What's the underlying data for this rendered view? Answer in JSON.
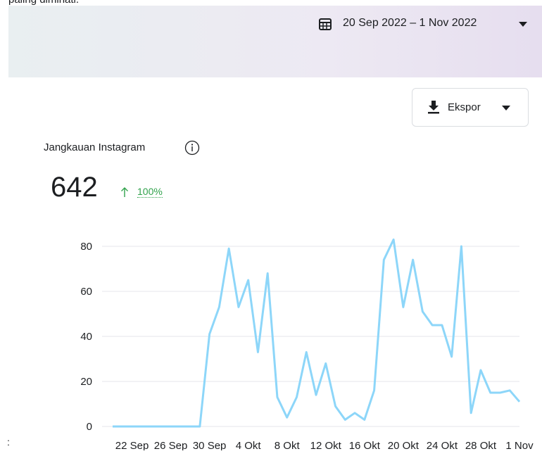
{
  "header": {
    "note": "paling diminati.",
    "date_range": "20 Sep 2022 – 1 Nov 2022"
  },
  "export_button": "Ekspor",
  "metric": {
    "title": "Jangkauan Instagram",
    "value": "642",
    "change": "100%"
  },
  "footer_mark": ":",
  "chart_data": {
    "type": "line",
    "categories": [
      null,
      null,
      "22 Sep",
      null,
      null,
      null,
      "26 Sep",
      null,
      null,
      null,
      "30 Sep",
      null,
      null,
      null,
      "4 Okt",
      null,
      null,
      null,
      "8 Okt",
      null,
      null,
      null,
      "12 Okt",
      null,
      null,
      null,
      "16 Okt",
      null,
      null,
      null,
      "20 Okt",
      null,
      null,
      null,
      "24 Okt",
      null,
      null,
      null,
      "28 Okt",
      null,
      null,
      null,
      "1 Nov"
    ],
    "series": [
      {
        "name": "Jangkauan Instagram",
        "color": "#8dd6f9",
        "values": [
          0,
          0,
          0,
          0,
          0,
          0,
          0,
          0,
          0,
          0,
          41,
          53,
          79,
          53,
          65,
          33,
          68,
          13,
          4,
          13,
          33,
          14,
          28,
          9,
          3,
          6,
          3,
          16,
          74,
          83,
          53,
          74,
          51,
          45,
          45,
          31,
          80,
          6,
          25,
          15,
          15,
          16,
          11
        ]
      }
    ],
    "ylim": [
      0,
      80
    ],
    "yticks": [
      0,
      20,
      40,
      60,
      80
    ],
    "grid": true
  }
}
